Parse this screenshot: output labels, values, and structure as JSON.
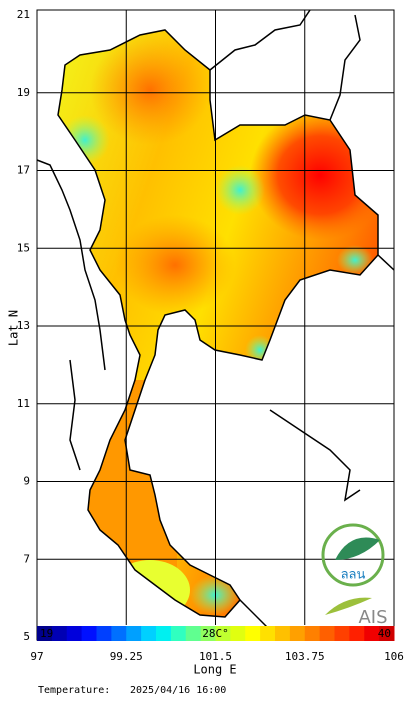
{
  "axes": {
    "x": {
      "label": "Long E",
      "ticks": [
        97,
        99.25,
        101.5,
        103.75,
        106
      ]
    },
    "y": {
      "label": "Lat N",
      "ticks": [
        21,
        19,
        17,
        15,
        13,
        11,
        9,
        7,
        5
      ]
    }
  },
  "colorbar": {
    "min_label": "19",
    "mid_label": "28C°",
    "max_label": "40"
  },
  "footer": {
    "label": "Temperature:",
    "timestamp": "2025/04/16 16:00"
  },
  "logos": {
    "top": "ลลน",
    "bottom": "AIS"
  }
}
